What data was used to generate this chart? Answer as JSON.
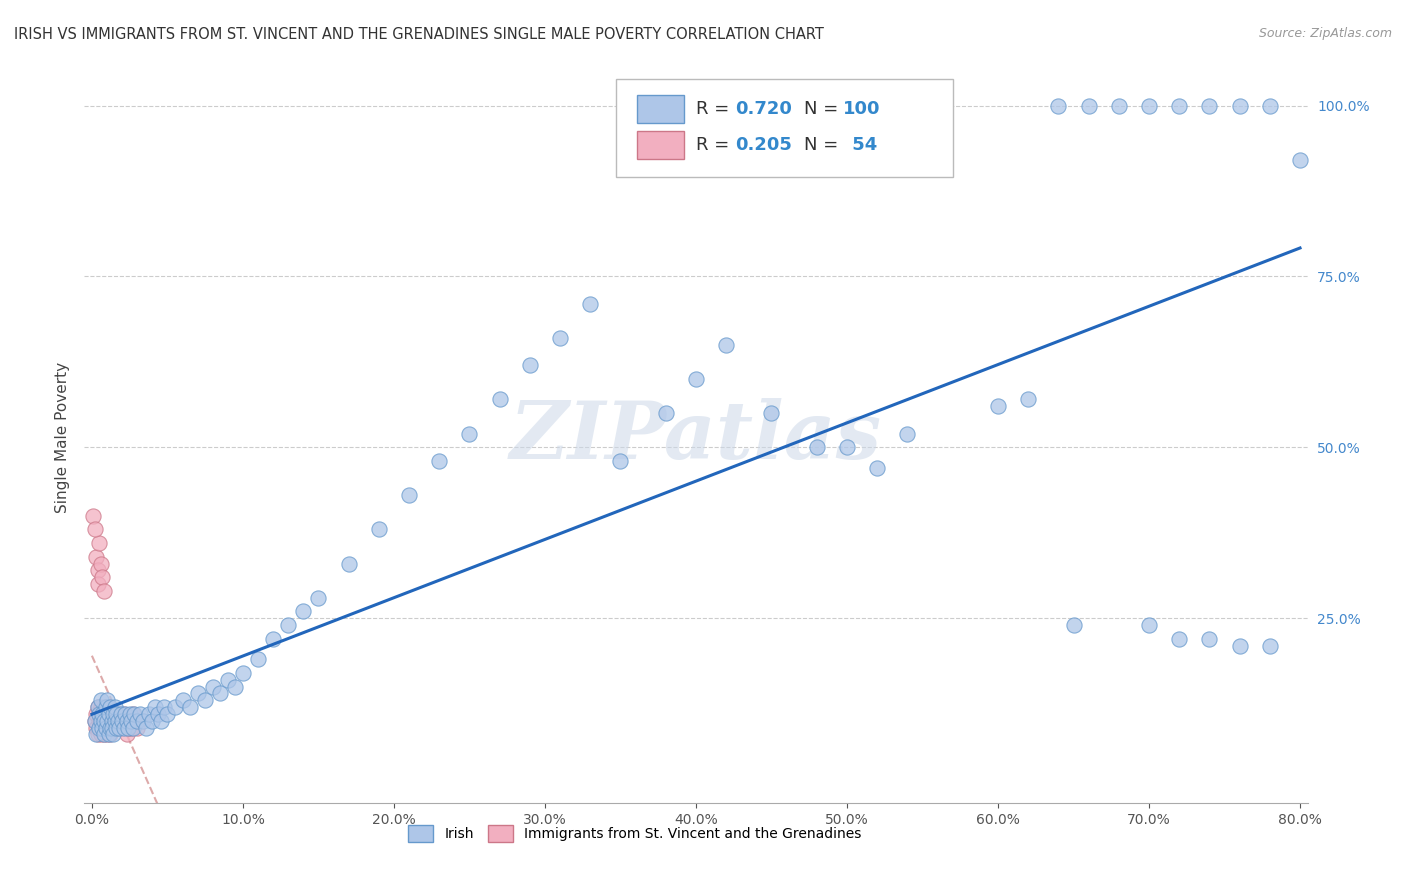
{
  "title": "IRISH VS IMMIGRANTS FROM ST. VINCENT AND THE GRENADINES SINGLE MALE POVERTY CORRELATION CHART",
  "source": "Source: ZipAtlas.com",
  "ylabel": "Single Male Poverty",
  "watermark": "ZIPatlas",
  "legend_R_irish": "0.720",
  "legend_N_irish": "100",
  "legend_R_svg": "0.205",
  "legend_N_svg": "54",
  "irish_color": "#aec6e8",
  "svg_color": "#f2afc0",
  "irish_edge": "#6699cc",
  "svg_edge": "#cc7788",
  "line_irish_color": "#2266bb",
  "line_svg_color": "#ddaaaa",
  "xlim": [
    -0.005,
    0.805
  ],
  "ylim": [
    -0.02,
    1.05
  ],
  "xticks": [
    0.0,
    0.1,
    0.2,
    0.3,
    0.4,
    0.5,
    0.6,
    0.7,
    0.8
  ],
  "yticks": [
    0.25,
    0.5,
    0.75,
    1.0
  ],
  "irish_x": [
    0.002,
    0.003,
    0.004,
    0.005,
    0.005,
    0.006,
    0.006,
    0.007,
    0.007,
    0.008,
    0.008,
    0.009,
    0.009,
    0.01,
    0.01,
    0.011,
    0.011,
    0.012,
    0.012,
    0.013,
    0.013,
    0.014,
    0.014,
    0.015,
    0.015,
    0.016,
    0.016,
    0.017,
    0.018,
    0.019,
    0.02,
    0.021,
    0.022,
    0.023,
    0.024,
    0.025,
    0.026,
    0.027,
    0.028,
    0.03,
    0.032,
    0.034,
    0.036,
    0.038,
    0.04,
    0.042,
    0.044,
    0.046,
    0.048,
    0.05,
    0.055,
    0.06,
    0.065,
    0.07,
    0.075,
    0.08,
    0.085,
    0.09,
    0.095,
    0.1,
    0.11,
    0.12,
    0.13,
    0.14,
    0.15,
    0.17,
    0.19,
    0.21,
    0.23,
    0.25,
    0.27,
    0.29,
    0.31,
    0.33,
    0.35,
    0.38,
    0.4,
    0.42,
    0.45,
    0.48,
    0.5,
    0.52,
    0.54,
    0.6,
    0.62,
    0.64,
    0.66,
    0.68,
    0.7,
    0.72,
    0.74,
    0.76,
    0.78,
    0.8,
    0.65,
    0.7,
    0.72,
    0.74,
    0.76,
    0.78
  ],
  "irish_y": [
    0.1,
    0.08,
    0.12,
    0.09,
    0.11,
    0.1,
    0.13,
    0.09,
    0.11,
    0.08,
    0.1,
    0.12,
    0.09,
    0.1,
    0.13,
    0.08,
    0.11,
    0.09,
    0.12,
    0.1,
    0.09,
    0.11,
    0.08,
    0.1,
    0.12,
    0.09,
    0.11,
    0.1,
    0.09,
    0.11,
    0.1,
    0.09,
    0.11,
    0.1,
    0.09,
    0.11,
    0.1,
    0.09,
    0.11,
    0.1,
    0.11,
    0.1,
    0.09,
    0.11,
    0.1,
    0.12,
    0.11,
    0.1,
    0.12,
    0.11,
    0.12,
    0.13,
    0.12,
    0.14,
    0.13,
    0.15,
    0.14,
    0.16,
    0.15,
    0.17,
    0.19,
    0.22,
    0.24,
    0.26,
    0.28,
    0.33,
    0.38,
    0.43,
    0.48,
    0.52,
    0.57,
    0.62,
    0.66,
    0.71,
    0.48,
    0.55,
    0.6,
    0.65,
    0.55,
    0.5,
    0.5,
    0.47,
    0.52,
    0.56,
    0.57,
    1.0,
    1.0,
    1.0,
    1.0,
    1.0,
    1.0,
    1.0,
    1.0,
    0.92,
    0.24,
    0.24,
    0.22,
    0.22,
    0.21,
    0.21
  ],
  "svg_x": [
    0.002,
    0.003,
    0.003,
    0.004,
    0.004,
    0.005,
    0.005,
    0.005,
    0.006,
    0.006,
    0.006,
    0.007,
    0.007,
    0.007,
    0.008,
    0.008,
    0.008,
    0.009,
    0.009,
    0.01,
    0.01,
    0.01,
    0.011,
    0.011,
    0.012,
    0.012,
    0.013,
    0.013,
    0.014,
    0.015,
    0.015,
    0.016,
    0.017,
    0.018,
    0.019,
    0.02,
    0.021,
    0.022,
    0.023,
    0.024,
    0.025,
    0.026,
    0.027,
    0.028,
    0.03,
    0.003,
    0.004,
    0.004,
    0.005,
    0.006,
    0.007,
    0.008,
    0.001,
    0.002
  ],
  "svg_y": [
    0.1,
    0.09,
    0.11,
    0.08,
    0.12,
    0.1,
    0.09,
    0.11,
    0.08,
    0.1,
    0.12,
    0.09,
    0.11,
    0.1,
    0.08,
    0.1,
    0.12,
    0.09,
    0.11,
    0.08,
    0.1,
    0.12,
    0.09,
    0.11,
    0.08,
    0.1,
    0.09,
    0.11,
    0.1,
    0.09,
    0.11,
    0.1,
    0.09,
    0.11,
    0.1,
    0.09,
    0.11,
    0.1,
    0.08,
    0.09,
    0.1,
    0.09,
    0.11,
    0.1,
    0.09,
    0.34,
    0.32,
    0.3,
    0.36,
    0.33,
    0.31,
    0.29,
    0.4,
    0.38
  ]
}
